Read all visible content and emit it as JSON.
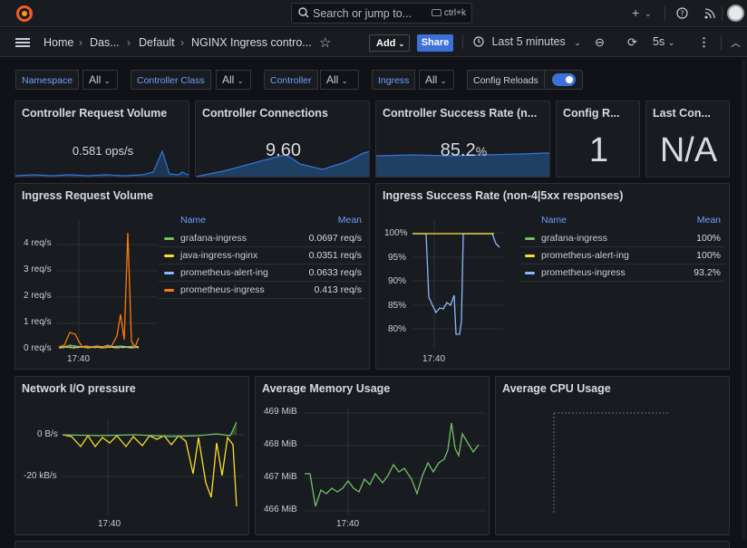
{
  "topbar": {
    "search_placeholder": "Search or jump to...",
    "search_shortcut": "ctrl+k"
  },
  "navbar": {
    "breadcrumbs": [
      "Home",
      "Das...",
      "Default",
      "NGINX Ingress contro..."
    ],
    "add_label": "Add",
    "share_label": "Share",
    "time_range": "Last 5 minutes",
    "refresh_interval": "5s"
  },
  "variables": [
    {
      "label": "Namespace",
      "value": "All"
    },
    {
      "label": "Controller Class",
      "value": "All"
    },
    {
      "label": "Controller",
      "value": "All"
    },
    {
      "label": "Ingress",
      "value": "All"
    }
  ],
  "config_reloads": {
    "label": "Config Reloads",
    "enabled": true
  },
  "stats": [
    {
      "title": "Controller Request Volume",
      "value": "0.581 ops/s"
    },
    {
      "title": "Controller Connections",
      "value": "9.60"
    },
    {
      "title": "Controller Success Rate (n...",
      "value": "85.2",
      "unit": "%"
    },
    {
      "title": "Config R...",
      "value": "1"
    },
    {
      "title": "Last Con...",
      "value": "N/A"
    }
  ],
  "ingress_request_volume": {
    "title": "Ingress Request Volume",
    "legend_headers": [
      "Name",
      "Mean"
    ],
    "legend": [
      {
        "name": "grafana-ingress",
        "mean": "0.0697 req/s",
        "color": "#73bf69"
      },
      {
        "name": "java-ingress-nginx",
        "mean": "0.0351 req/s",
        "color": "#fade2a"
      },
      {
        "name": "prometheus-alert-ing",
        "mean": "0.0633 req/s",
        "color": "#8ab8ff"
      },
      {
        "name": "prometheus-ingress",
        "mean": "0.413 req/s",
        "color": "#ff780a"
      }
    ],
    "y_ticks": [
      "4 req/s",
      "3 req/s",
      "2 req/s",
      "1 req/s",
      "0 req/s"
    ],
    "x_tick": "17:40"
  },
  "ingress_success_rate": {
    "title": "Ingress Success Rate (non-4|5xx responses)",
    "legend_headers": [
      "Name",
      "Mean"
    ],
    "legend": [
      {
        "name": "grafana-ingress",
        "mean": "100%",
        "color": "#73bf69"
      },
      {
        "name": "prometheus-alert-ing",
        "mean": "100%",
        "color": "#fade2a"
      },
      {
        "name": "prometheus-ingress",
        "mean": "93.2%",
        "color": "#8ab8ff"
      }
    ],
    "y_ticks": [
      "100%",
      "95%",
      "90%",
      "85%",
      "80%"
    ],
    "x_tick": "17:40"
  },
  "network_io": {
    "title": "Network I/O pressure",
    "y_ticks": [
      "0 B/s",
      "-20 kB/s"
    ],
    "x_tick": "17:40"
  },
  "avg_memory": {
    "title": "Average Memory Usage",
    "y_ticks": [
      "469 MiB",
      "468 MiB",
      "467 MiB",
      "466 MiB"
    ],
    "x_tick": "17:40"
  },
  "avg_cpu": {
    "title": "Average CPU Usage"
  }
}
